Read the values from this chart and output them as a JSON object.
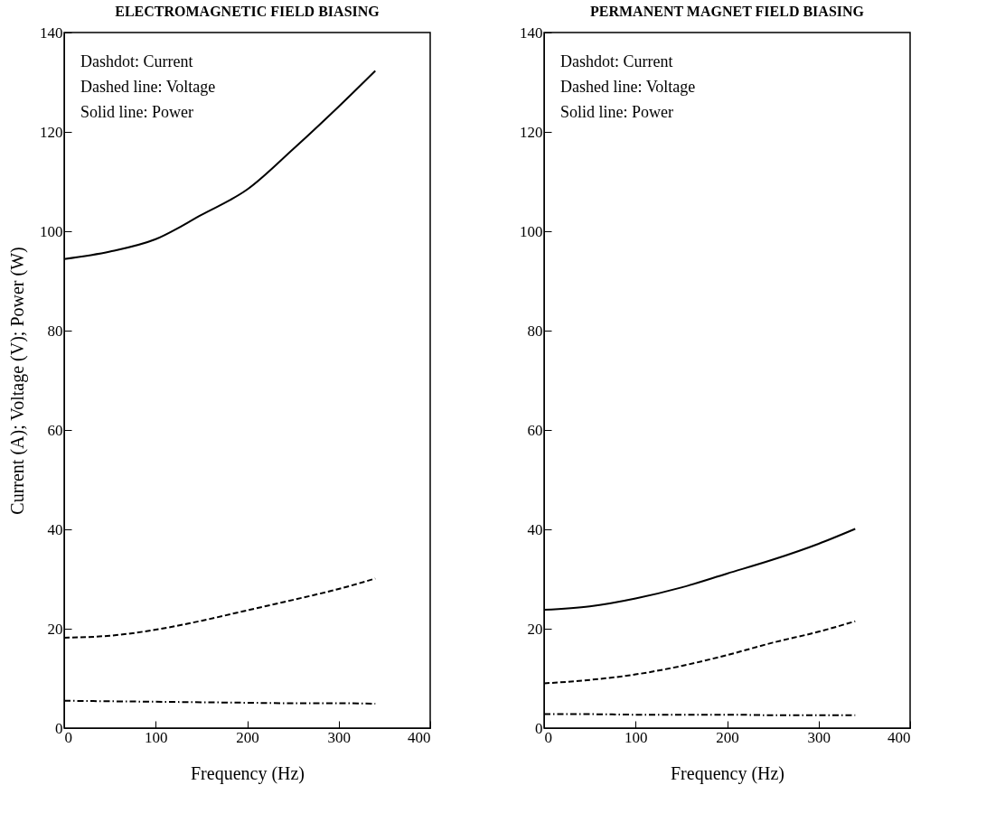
{
  "chart_data": [
    {
      "type": "line",
      "title": "ELECTROMAGNETIC FIELD BIASING",
      "xlabel": "Frequency (Hz)",
      "ylabel": "Current (A);  Voltage (V);  Power (W)",
      "xlim": [
        0,
        400
      ],
      "xticks": [
        0,
        100,
        200,
        300,
        400
      ],
      "ylim": [
        0,
        140
      ],
      "yticks": [
        0,
        20,
        40,
        60,
        80,
        100,
        120,
        140
      ],
      "grid": false,
      "legend": false,
      "annotations": [
        "Dashdot:      Current",
        "Dashed line:  Voltage",
        "Solid line:     Power"
      ],
      "x": [
        0,
        50,
        100,
        150,
        200,
        250,
        300,
        340
      ],
      "series": [
        {
          "color": "#000000",
          "line_style": "dashdot",
          "values": [
            5.5,
            5.4,
            5.3,
            5.2,
            5.1,
            5.0,
            5.0,
            4.9
          ]
        },
        {
          "color": "#000000",
          "line_style": "dashed",
          "values": [
            18.2,
            18.6,
            19.8,
            21.6,
            23.7,
            25.8,
            28,
            30.1
          ]
        },
        {
          "color": "#000000",
          "line_style": "solid",
          "values": [
            94.4,
            95.9,
            98.4,
            103.3,
            108.4,
            116.5,
            125.1,
            132.3
          ]
        }
      ]
    },
    {
      "type": "line",
      "title": "PERMANENT MAGNET FIELD BIASING",
      "xlabel": "Frequency (Hz)",
      "xlim": [
        0,
        400
      ],
      "xticks": [
        0,
        100,
        200,
        300,
        400
      ],
      "ylim": [
        0,
        140
      ],
      "yticks": [
        0,
        20,
        40,
        60,
        80,
        100,
        120,
        140
      ],
      "grid": false,
      "legend": false,
      "annotations": [
        "Dashdot:      Current",
        "Dashed line:  Voltage",
        "Solid line:     Power"
      ],
      "x": [
        0,
        50,
        100,
        150,
        200,
        250,
        300,
        340
      ],
      "series": [
        {
          "color": "#000000",
          "line_style": "dashdot",
          "values": [
            2.8,
            2.8,
            2.7,
            2.7,
            2.7,
            2.6,
            2.6,
            2.6
          ]
        },
        {
          "color": "#000000",
          "line_style": "dashed",
          "values": [
            9.0,
            9.7,
            10.8,
            12.5,
            14.7,
            17.2,
            19.4,
            21.5
          ]
        },
        {
          "color": "#000000",
          "line_style": "solid",
          "values": [
            23.8,
            24.5,
            26.1,
            28.3,
            31.1,
            33.9,
            37.1,
            40.1
          ]
        }
      ]
    }
  ]
}
